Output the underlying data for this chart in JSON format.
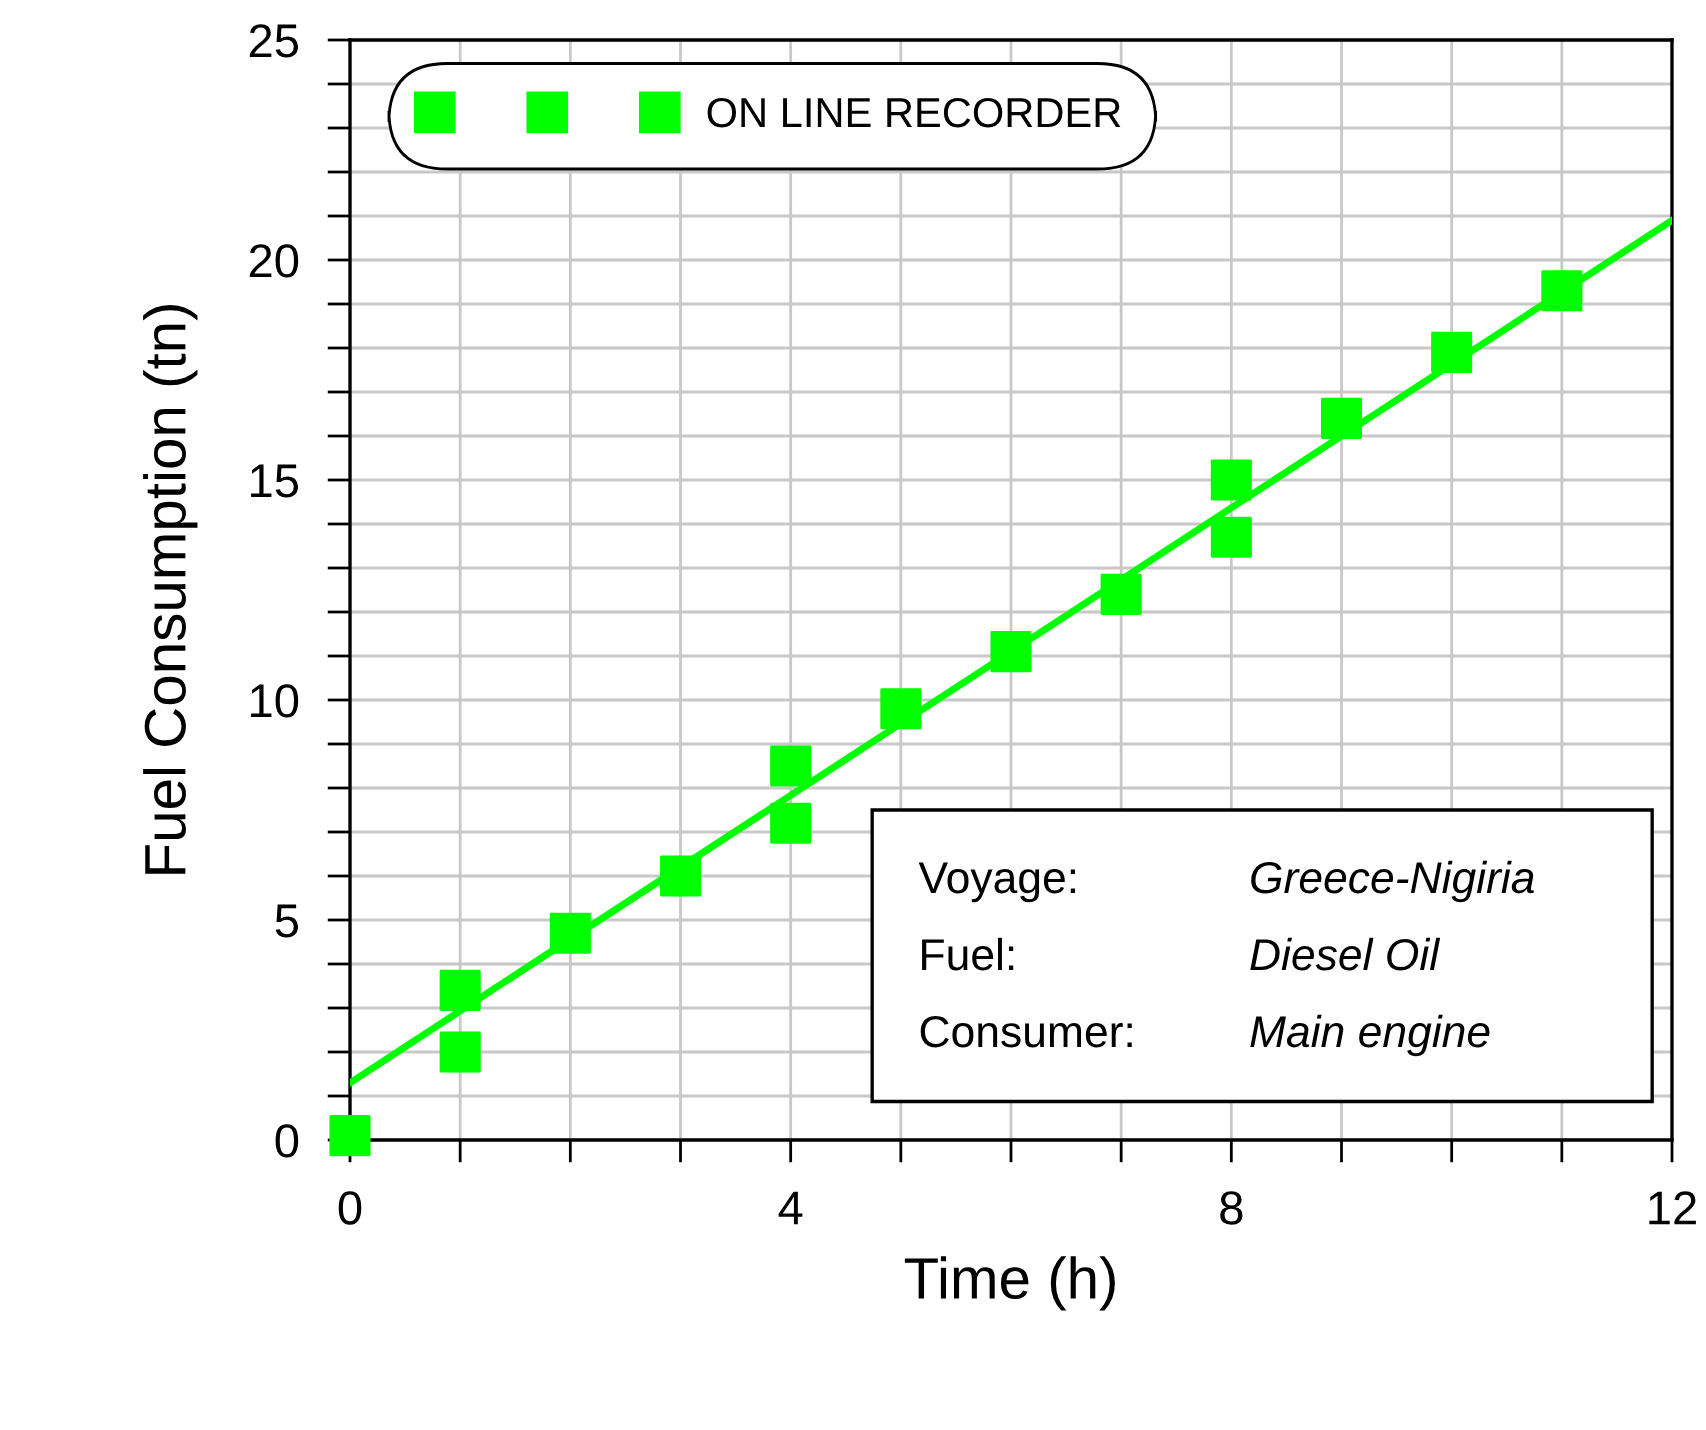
{
  "chart_data": {
    "type": "scatter",
    "xlabel": "Time (h)",
    "ylabel": "Fuel Consumption (tn)",
    "xlim": [
      0,
      12
    ],
    "ylim": [
      0,
      25
    ],
    "xticks": [
      0,
      {
        "value": 1,
        "label": null
      },
      {
        "value": 2,
        "label": null
      },
      {
        "value": 3,
        "label": null
      },
      4,
      {
        "value": 5,
        "label": null
      },
      {
        "value": 6,
        "label": null
      },
      {
        "value": 7,
        "label": null
      },
      8,
      {
        "value": 9,
        "label": null
      },
      {
        "value": 10,
        "label": null
      },
      {
        "value": 11,
        "label": null
      },
      12
    ],
    "yticks": [
      0,
      {
        "value": 1,
        "label": null
      },
      {
        "value": 2,
        "label": null
      },
      {
        "value": 3,
        "label": null
      },
      {
        "value": 4,
        "label": null
      },
      5,
      {
        "value": 6,
        "label": null
      },
      {
        "value": 7,
        "label": null
      },
      {
        "value": 8,
        "label": null
      },
      {
        "value": 9,
        "label": null
      },
      10,
      {
        "value": 11,
        "label": null
      },
      {
        "value": 12,
        "label": null
      },
      {
        "value": 13,
        "label": null
      },
      {
        "value": 14,
        "label": null
      },
      15,
      {
        "value": 16,
        "label": null
      },
      {
        "value": 17,
        "label": null
      },
      {
        "value": 18,
        "label": null
      },
      {
        "value": 19,
        "label": null
      },
      20,
      {
        "value": 21,
        "label": null
      },
      {
        "value": 22,
        "label": null
      },
      {
        "value": 23,
        "label": null
      },
      {
        "value": 24,
        "label": null
      },
      25
    ],
    "grid": true,
    "legend": "top left",
    "marker": "square",
    "series": [
      {
        "name": "ON LINE RECORDER",
        "color": "#00ff00",
        "x": [
          0,
          1,
          1,
          2,
          3,
          4,
          4,
          5,
          6,
          7,
          8,
          8,
          9,
          10,
          11
        ],
        "values": [
          0.1,
          3.4,
          2.0,
          4.7,
          6.0,
          8.5,
          7.2,
          9.8,
          11.1,
          12.4,
          15.0,
          13.7,
          16.4,
          17.9,
          19.3
        ]
      },
      {
        "type": "line",
        "marker": "none",
        "color": "#00ff00",
        "x": [
          0,
          12
        ],
        "values": [
          1.3,
          20.9
        ]
      }
    ],
    "annotations": [
      "Voyage:",
      "Greece-Nigiria",
      "Fuel:",
      "Diesel Oil",
      "Consumer:",
      "Main engine"
    ]
  }
}
